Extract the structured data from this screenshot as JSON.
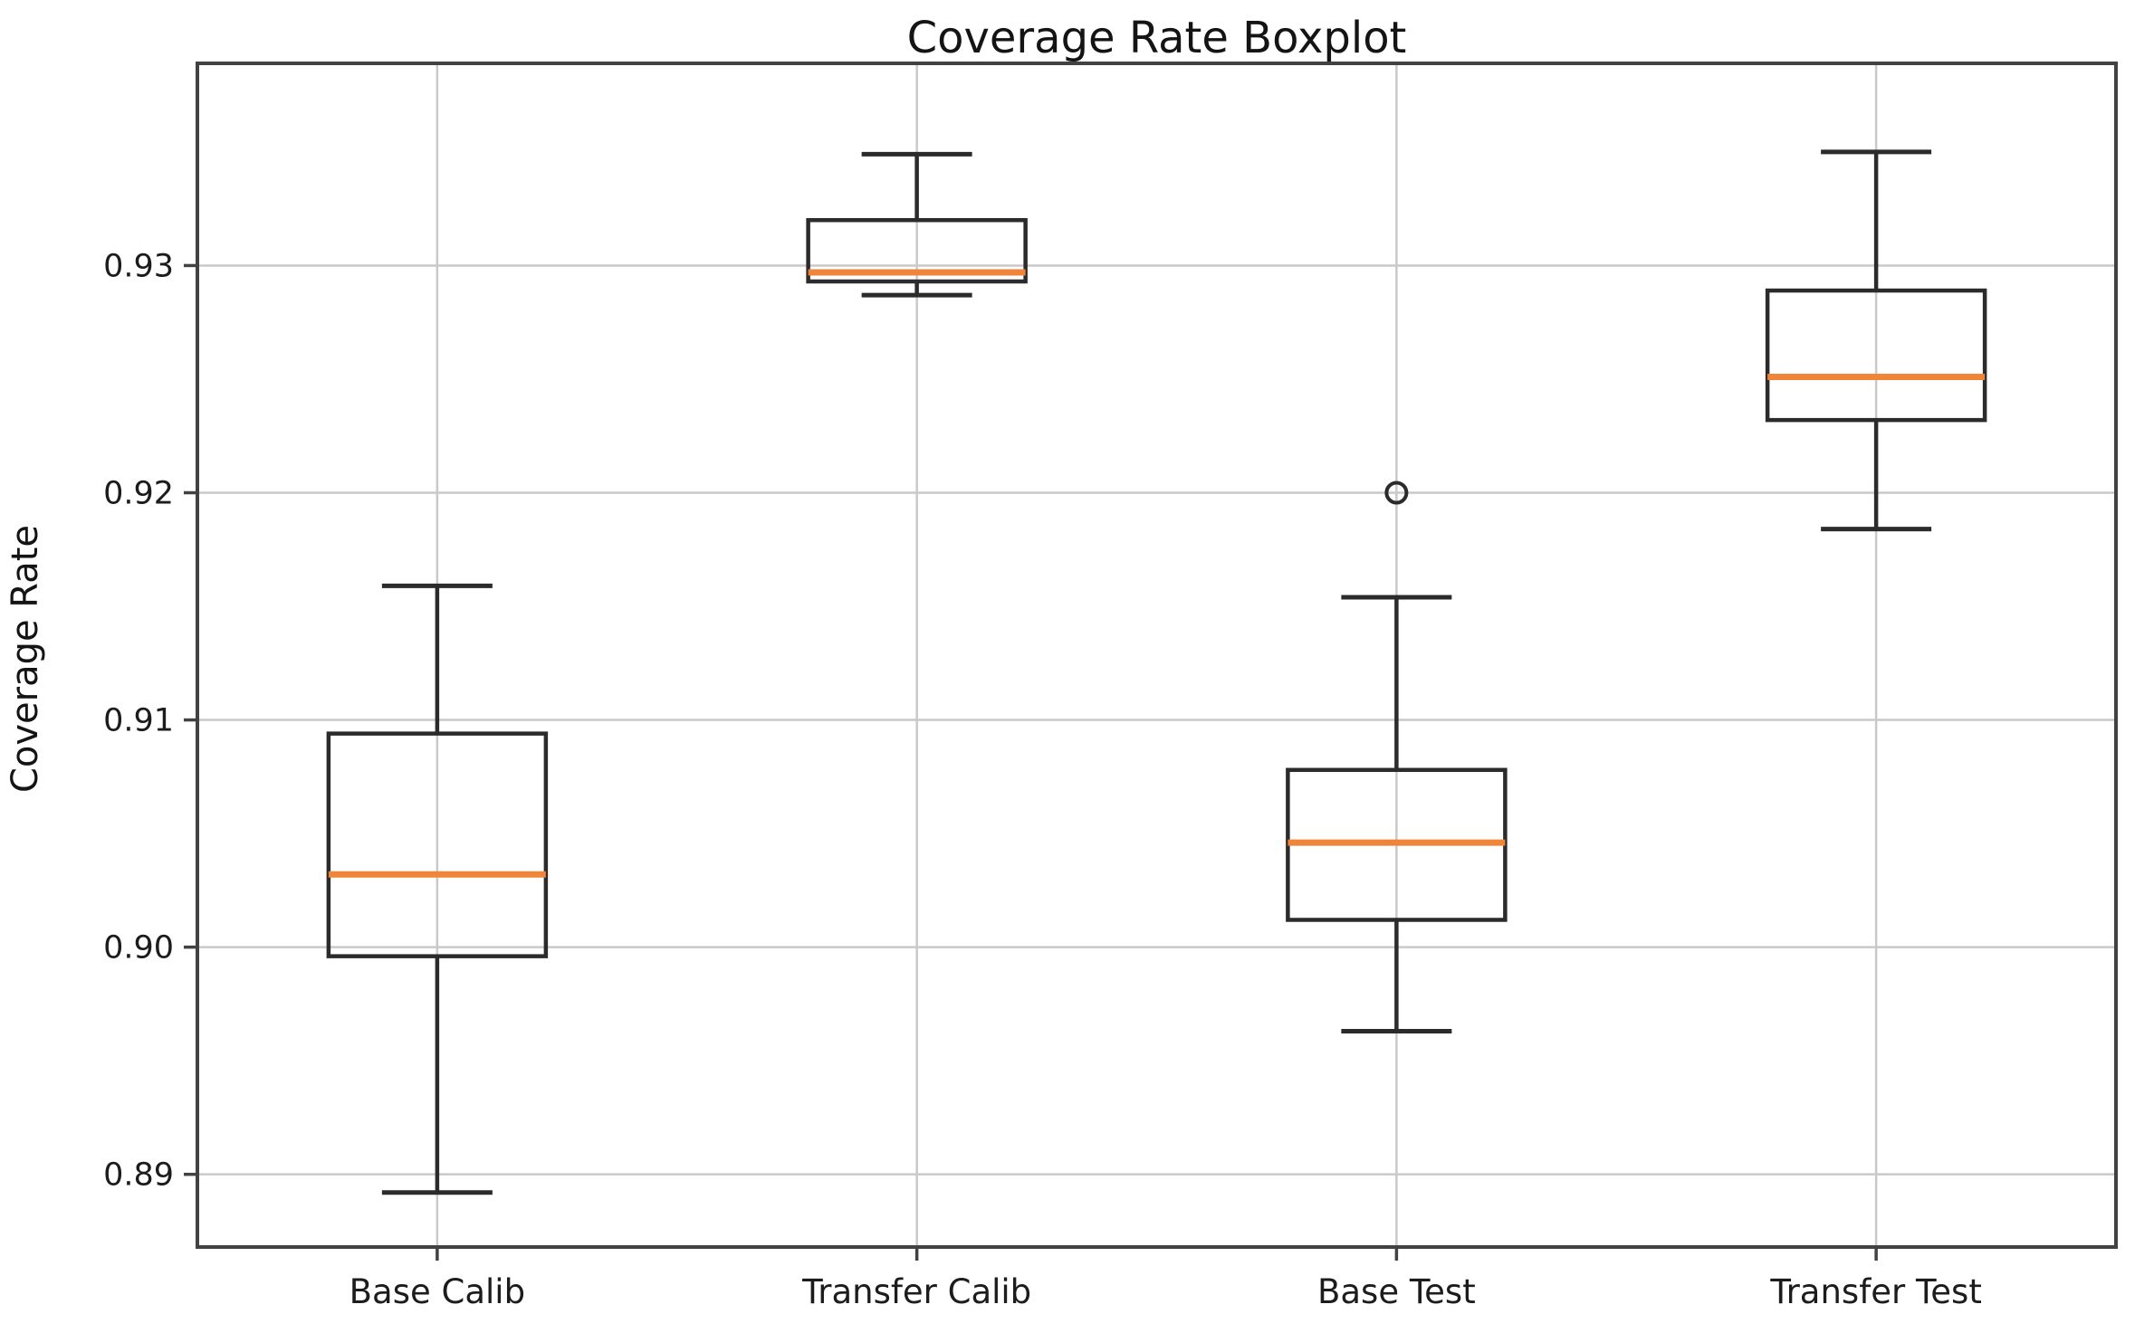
{
  "chart_data": {
    "type": "boxplot",
    "title": "Coverage Rate Boxplot",
    "ylabel": "Coverage Rate",
    "xlabel": "",
    "categories": [
      "Base Calib",
      "Transfer Calib",
      "Base Test",
      "Transfer Test"
    ],
    "yticks": [
      0.89,
      0.9,
      0.91,
      0.92,
      0.93
    ],
    "ytick_labels": [
      "0.89",
      "0.90",
      "0.91",
      "0.92",
      "0.93"
    ],
    "ylim": [
      0.8868,
      0.9389
    ],
    "grid": true,
    "legend": "none",
    "colors": {
      "median": "#f08438",
      "box_edge": "#2b2b2b",
      "grid": "#c9c9c9",
      "spine": "#424242",
      "background": "#ffffff"
    },
    "series": [
      {
        "name": "Base Calib",
        "whislo": 0.8892,
        "q1": 0.8996,
        "med": 0.9032,
        "q3": 0.9094,
        "whishi": 0.9159,
        "fliers": []
      },
      {
        "name": "Transfer Calib",
        "whislo": 0.9287,
        "q1": 0.9293,
        "med": 0.9297,
        "q3": 0.932,
        "whishi": 0.9349,
        "fliers": []
      },
      {
        "name": "Base Test",
        "whislo": 0.8963,
        "q1": 0.9012,
        "med": 0.9046,
        "q3": 0.9078,
        "whishi": 0.9154,
        "fliers": [
          0.92
        ]
      },
      {
        "name": "Transfer Test",
        "whislo": 0.9184,
        "q1": 0.9232,
        "med": 0.9251,
        "q3": 0.9289,
        "whishi": 0.935,
        "fliers": []
      }
    ]
  }
}
